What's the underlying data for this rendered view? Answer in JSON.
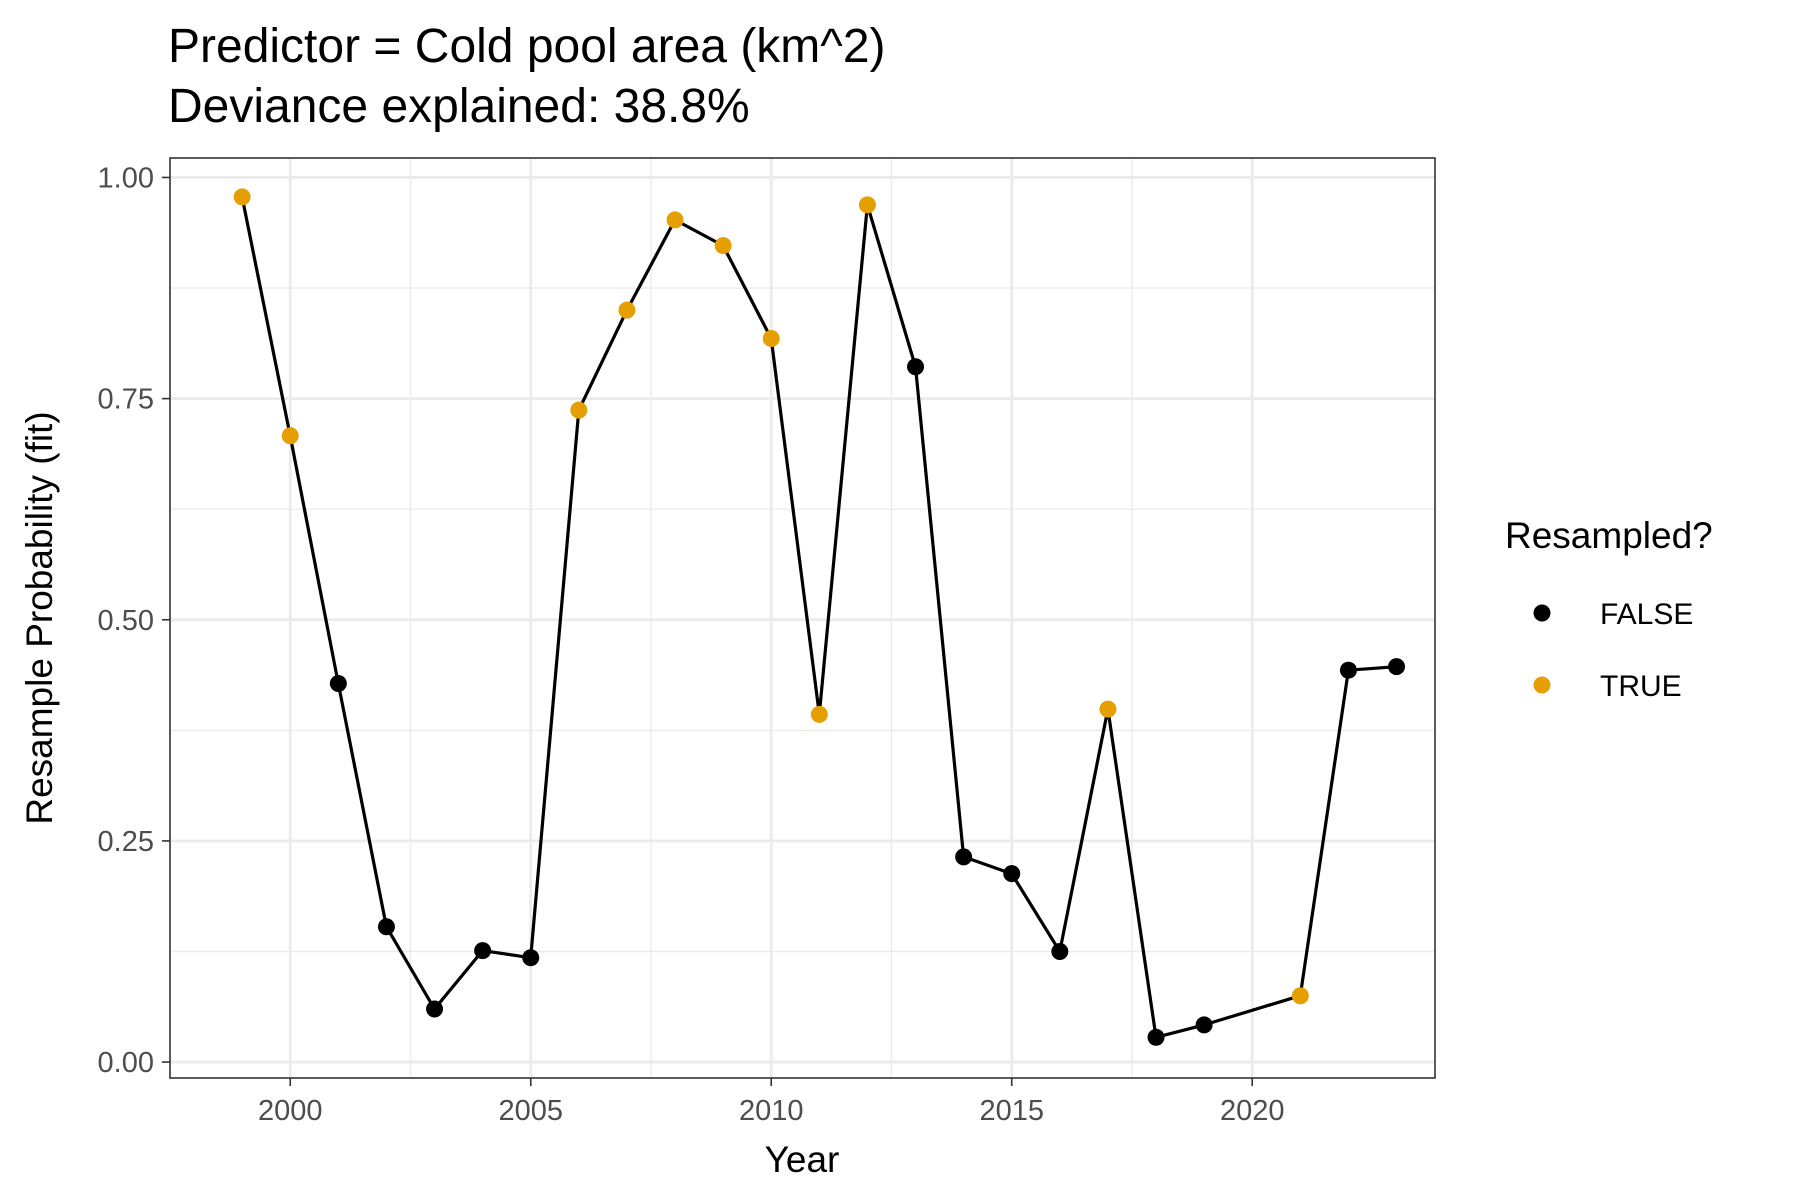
{
  "chart_data": {
    "type": "line",
    "title": "Predictor = Cold pool area (km^2)",
    "subtitle": "Deviance explained: 38.8%",
    "xlabel": "Year",
    "ylabel": "Resample Probability (fit)",
    "xlim": [
      1997.5,
      2023.8
    ],
    "ylim": [
      -0.018,
      1.022
    ],
    "x_ticks": [
      2000,
      2005,
      2010,
      2015,
      2020
    ],
    "x_tick_labels": [
      "2000",
      "2005",
      "2010",
      "2015",
      "2020"
    ],
    "y_ticks": [
      0,
      0.25,
      0.5,
      0.75,
      1
    ],
    "y_tick_labels": [
      "0.00",
      "0.25",
      "0.50",
      "0.75",
      "1.00"
    ],
    "grid": true,
    "legend": {
      "title": "Resampled?",
      "placement": "right",
      "entries": [
        {
          "label": "FALSE",
          "color": "#000000"
        },
        {
          "label": "TRUE",
          "color": "#E69F00"
        }
      ]
    },
    "line_color": "#000000",
    "points": [
      {
        "x": 1999,
        "y": 0.978,
        "resampled": "TRUE"
      },
      {
        "x": 2000,
        "y": 0.708,
        "resampled": "TRUE"
      },
      {
        "x": 2001,
        "y": 0.428,
        "resampled": "FALSE"
      },
      {
        "x": 2002,
        "y": 0.153,
        "resampled": "FALSE"
      },
      {
        "x": 2003,
        "y": 0.06,
        "resampled": "FALSE"
      },
      {
        "x": 2004,
        "y": 0.126,
        "resampled": "FALSE"
      },
      {
        "x": 2005,
        "y": 0.118,
        "resampled": "FALSE"
      },
      {
        "x": 2006,
        "y": 0.737,
        "resampled": "TRUE"
      },
      {
        "x": 2007,
        "y": 0.85,
        "resampled": "TRUE"
      },
      {
        "x": 2008,
        "y": 0.952,
        "resampled": "TRUE"
      },
      {
        "x": 2009,
        "y": 0.923,
        "resampled": "TRUE"
      },
      {
        "x": 2010,
        "y": 0.818,
        "resampled": "TRUE"
      },
      {
        "x": 2011,
        "y": 0.393,
        "resampled": "TRUE"
      },
      {
        "x": 2012,
        "y": 0.969,
        "resampled": "TRUE"
      },
      {
        "x": 2013,
        "y": 0.786,
        "resampled": "FALSE"
      },
      {
        "x": 2014,
        "y": 0.232,
        "resampled": "FALSE"
      },
      {
        "x": 2015,
        "y": 0.213,
        "resampled": "FALSE"
      },
      {
        "x": 2016,
        "y": 0.125,
        "resampled": "FALSE"
      },
      {
        "x": 2017,
        "y": 0.399,
        "resampled": "TRUE"
      },
      {
        "x": 2018,
        "y": 0.028,
        "resampled": "FALSE"
      },
      {
        "x": 2019,
        "y": 0.042,
        "resampled": "FALSE"
      },
      {
        "x": 2021,
        "y": 0.075,
        "resampled": "TRUE"
      },
      {
        "x": 2022,
        "y": 0.443,
        "resampled": "FALSE"
      },
      {
        "x": 2023,
        "y": 0.447,
        "resampled": "FALSE"
      }
    ]
  }
}
